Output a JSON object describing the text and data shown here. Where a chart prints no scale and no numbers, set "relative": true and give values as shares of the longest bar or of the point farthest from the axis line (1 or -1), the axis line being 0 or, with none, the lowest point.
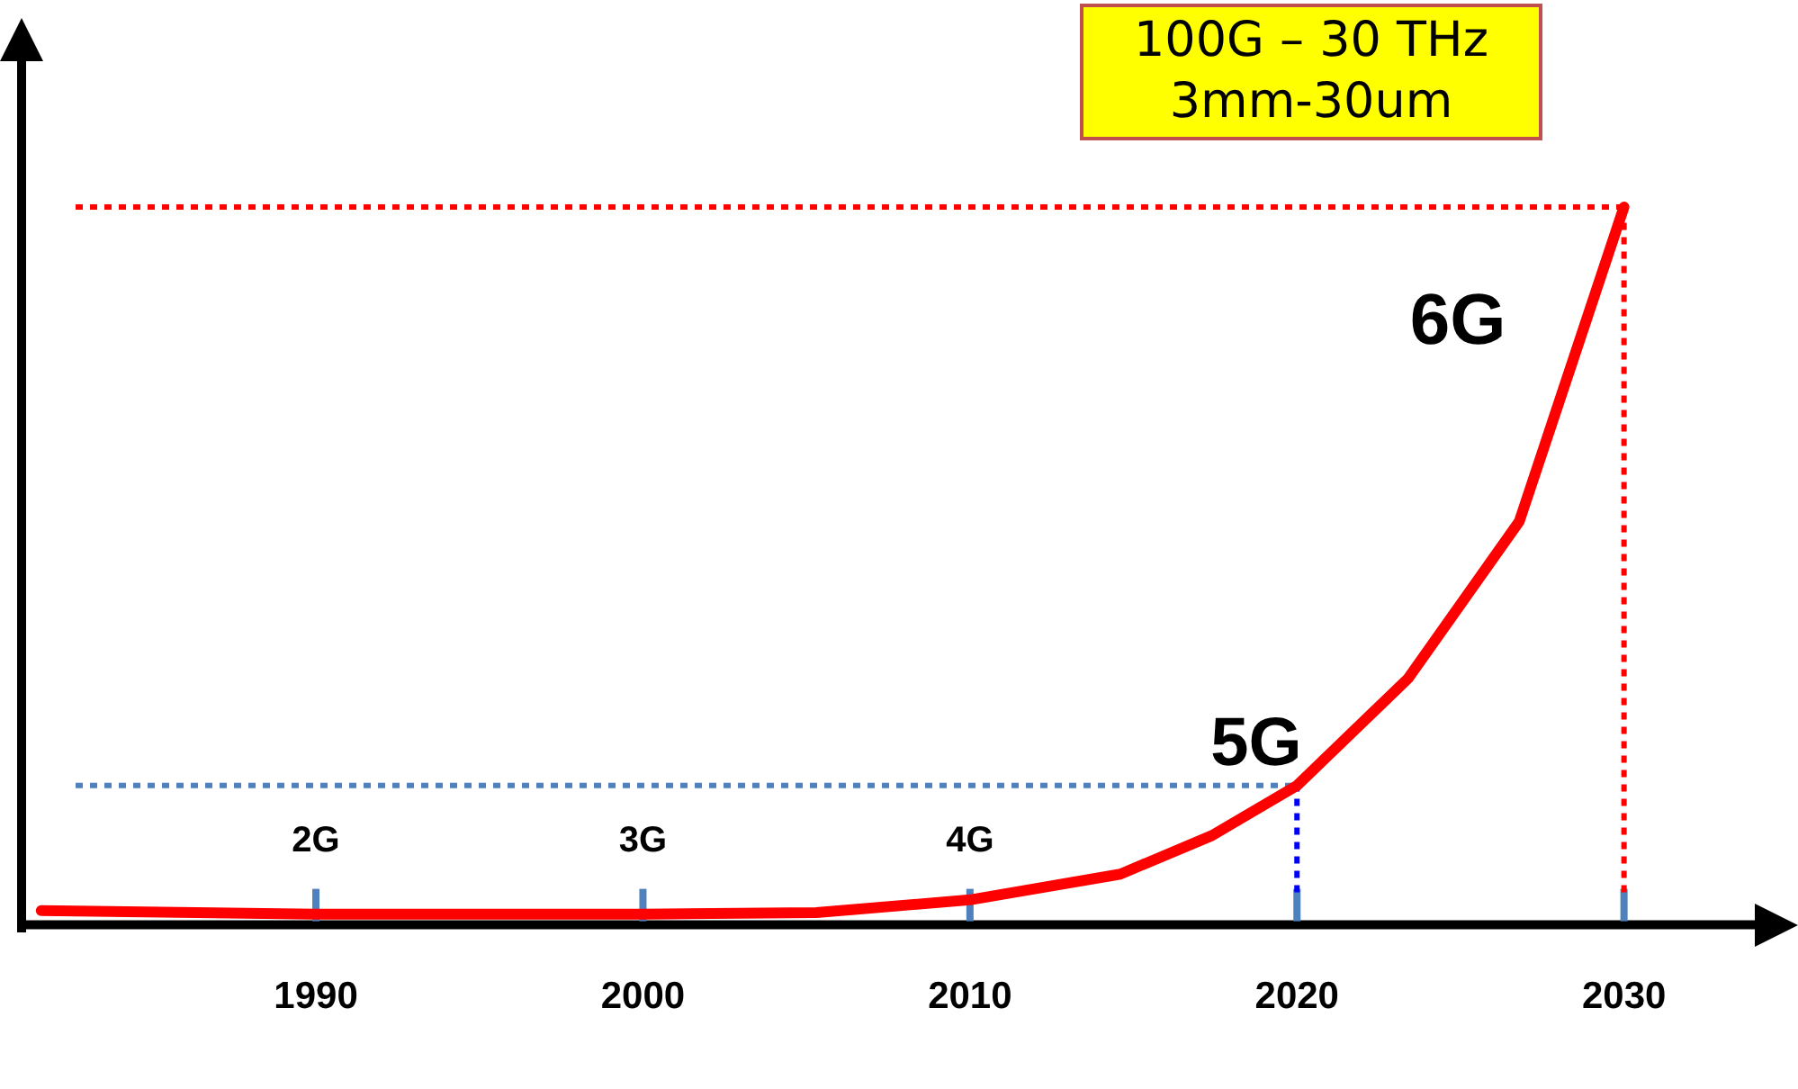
{
  "chart_data": {
    "type": "line",
    "relative": true,
    "x": [
      1981.6,
      1990,
      2000,
      2005.3,
      2010,
      2014.6,
      2017.4,
      2020,
      2023.4,
      2026.8,
      2030
    ],
    "series": [
      {
        "color": "#ff0000",
        "values": [
          0.015,
          0.01,
          0.01,
          0.012,
          0.03,
          0.066,
          0.12,
          0.19,
          0.34,
          0.56,
          1
        ]
      }
    ],
    "xlim": [
      1981,
      2034
    ],
    "xticks": [
      1990,
      2000,
      2010,
      2020,
      2030
    ],
    "grid": false,
    "legend": false,
    "marker": "none",
    "line_style": "solid",
    "ref_lines": [
      {
        "axis": "y",
        "value": 1,
        "color": "#ff0000",
        "line_style": "dotted"
      },
      {
        "axis": "y",
        "value": 0.19,
        "color": "#4f81bd",
        "line_style": "dotted"
      },
      {
        "axis": "x",
        "value": 2020,
        "color": "#0000ff",
        "line_style": "dotted"
      },
      {
        "axis": "x",
        "value": 2030,
        "color": "#ff0000",
        "line_style": "dotted"
      }
    ],
    "annotations": [
      "2G",
      "3G",
      "4G",
      "5G",
      "6G",
      "100G – 30 THz\n3mm-30um"
    ]
  }
}
